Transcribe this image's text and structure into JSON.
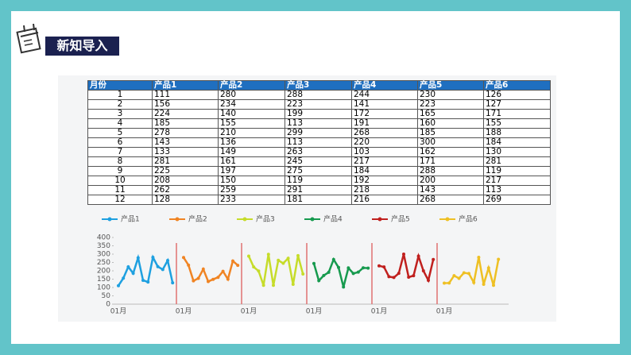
{
  "header": {
    "title": "新知导入"
  },
  "table": {
    "columns": [
      "月份",
      "产品1",
      "产品2",
      "产品3",
      "产品4",
      "产品5",
      "产品6"
    ],
    "rows": [
      [
        1,
        111,
        280,
        288,
        244,
        230,
        126
      ],
      [
        2,
        156,
        234,
        223,
        141,
        223,
        127
      ],
      [
        3,
        224,
        140,
        199,
        172,
        165,
        171
      ],
      [
        4,
        185,
        155,
        113,
        191,
        160,
        155
      ],
      [
        5,
        278,
        210,
        299,
        268,
        185,
        188
      ],
      [
        6,
        143,
        136,
        113,
        220,
        300,
        184
      ],
      [
        7,
        133,
        149,
        263,
        103,
        162,
        130
      ],
      [
        8,
        281,
        161,
        245,
        217,
        171,
        281
      ],
      [
        9,
        225,
        197,
        275,
        184,
        288,
        119
      ],
      [
        10,
        208,
        150,
        119,
        192,
        200,
        217
      ],
      [
        11,
        262,
        259,
        291,
        218,
        143,
        113
      ],
      [
        12,
        128,
        233,
        181,
        216,
        268,
        269
      ]
    ]
  },
  "chart": {
    "type": "line",
    "series": [
      {
        "name": "产品1",
        "color": "#1ea0e0",
        "values": [
          111,
          156,
          224,
          185,
          278,
          143,
          133,
          281,
          225,
          208,
          262,
          128
        ]
      },
      {
        "name": "产品2",
        "color": "#f08423",
        "values": [
          280,
          234,
          140,
          155,
          210,
          136,
          149,
          161,
          197,
          150,
          259,
          233
        ]
      },
      {
        "name": "产品3",
        "color": "#c6dc2a",
        "values": [
          288,
          223,
          199,
          113,
          299,
          113,
          263,
          245,
          275,
          119,
          291,
          181
        ]
      },
      {
        "name": "产品4",
        "color": "#169a4e",
        "values": [
          244,
          141,
          172,
          191,
          268,
          220,
          103,
          217,
          184,
          192,
          218,
          216
        ]
      },
      {
        "name": "产品5",
        "color": "#c0201e",
        "values": [
          230,
          223,
          165,
          160,
          185,
          300,
          162,
          171,
          288,
          200,
          143,
          268
        ]
      },
      {
        "name": "产品6",
        "color": "#eec024",
        "values": [
          126,
          127,
          171,
          155,
          188,
          184,
          130,
          281,
          119,
          217,
          113,
          269
        ]
      }
    ],
    "panel_labels": [
      "01月",
      "01月",
      "01月",
      "01月",
      "01月",
      "01月"
    ],
    "ylim": [
      0,
      400
    ],
    "yticks": [
      0,
      50,
      100,
      150,
      200,
      250,
      300,
      350,
      400
    ],
    "separator_color": "#e07070"
  }
}
